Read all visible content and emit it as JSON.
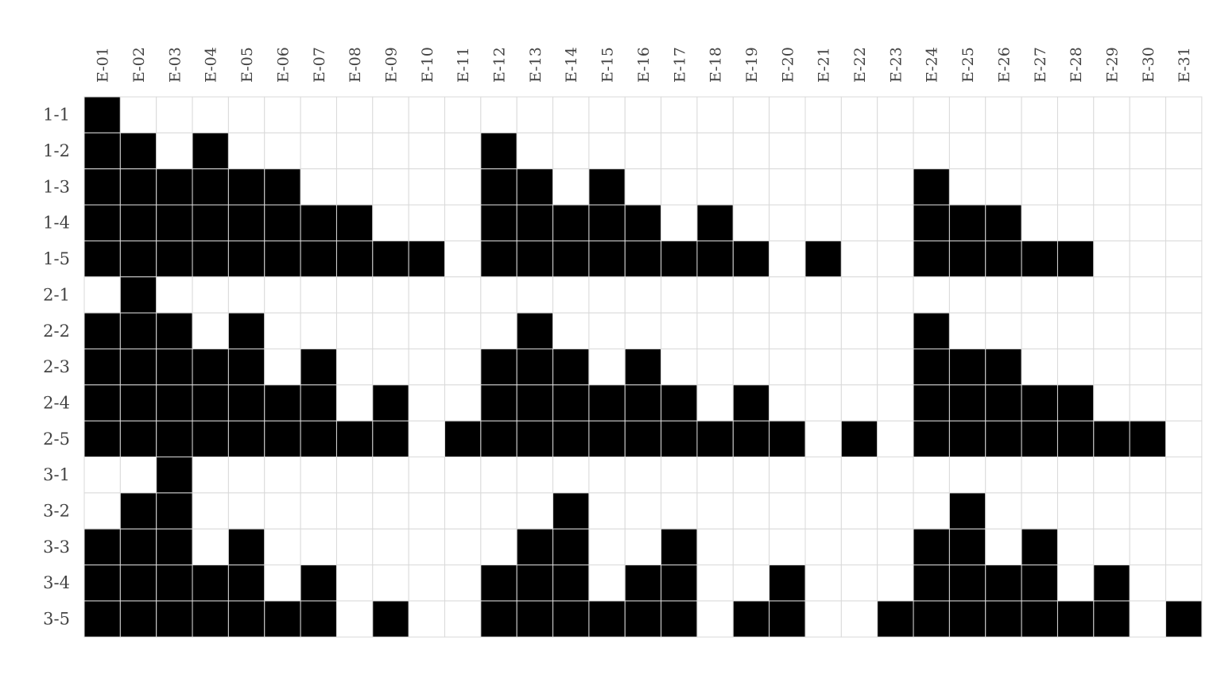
{
  "chart_data": {
    "type": "heatmap",
    "title": "",
    "xlabel": "",
    "ylabel": "",
    "legend": "none",
    "grid": true,
    "colors": {
      "filled": "#000000",
      "empty": "#ffffff",
      "grid": "#d9d9d9",
      "text": "#444444"
    },
    "columns": [
      "E-01",
      "E-02",
      "E-03",
      "E-04",
      "E-05",
      "E-06",
      "E-07",
      "E-08",
      "E-09",
      "E-10",
      "E-11",
      "E-12",
      "E-13",
      "E-14",
      "E-15",
      "E-16",
      "E-17",
      "E-18",
      "E-19",
      "E-20",
      "E-21",
      "E-22",
      "E-23",
      "E-24",
      "E-25",
      "E-26",
      "E-27",
      "E-28",
      "E-29",
      "E-30",
      "E-31"
    ],
    "rows": [
      "1-1",
      "1-2",
      "1-3",
      "1-4",
      "1-5",
      "2-1",
      "2-2",
      "2-3",
      "2-4",
      "2-5",
      "3-1",
      "3-2",
      "3-3",
      "3-4",
      "3-5"
    ],
    "values": [
      [
        1,
        0,
        0,
        0,
        0,
        0,
        0,
        0,
        0,
        0,
        0,
        0,
        0,
        0,
        0,
        0,
        0,
        0,
        0,
        0,
        0,
        0,
        0,
        0,
        0,
        0,
        0,
        0,
        0,
        0,
        0
      ],
      [
        1,
        1,
        0,
        1,
        0,
        0,
        0,
        0,
        0,
        0,
        0,
        1,
        0,
        0,
        0,
        0,
        0,
        0,
        0,
        0,
        0,
        0,
        0,
        0,
        0,
        0,
        0,
        0,
        0,
        0,
        0
      ],
      [
        1,
        1,
        1,
        1,
        1,
        1,
        0,
        0,
        0,
        0,
        0,
        1,
        1,
        0,
        1,
        0,
        0,
        0,
        0,
        0,
        0,
        0,
        0,
        1,
        0,
        0,
        0,
        0,
        0,
        0,
        0
      ],
      [
        1,
        1,
        1,
        1,
        1,
        1,
        1,
        1,
        0,
        0,
        0,
        1,
        1,
        1,
        1,
        1,
        0,
        1,
        0,
        0,
        0,
        0,
        0,
        1,
        1,
        1,
        0,
        0,
        0,
        0,
        0
      ],
      [
        1,
        1,
        1,
        1,
        1,
        1,
        1,
        1,
        1,
        1,
        0,
        1,
        1,
        1,
        1,
        1,
        1,
        1,
        1,
        0,
        1,
        0,
        0,
        1,
        1,
        1,
        1,
        1,
        0,
        0,
        0
      ],
      [
        0,
        1,
        0,
        0,
        0,
        0,
        0,
        0,
        0,
        0,
        0,
        0,
        0,
        0,
        0,
        0,
        0,
        0,
        0,
        0,
        0,
        0,
        0,
        0,
        0,
        0,
        0,
        0,
        0,
        0,
        0
      ],
      [
        1,
        1,
        1,
        0,
        1,
        0,
        0,
        0,
        0,
        0,
        0,
        0,
        1,
        0,
        0,
        0,
        0,
        0,
        0,
        0,
        0,
        0,
        0,
        1,
        0,
        0,
        0,
        0,
        0,
        0,
        0
      ],
      [
        1,
        1,
        1,
        1,
        1,
        0,
        1,
        0,
        0,
        0,
        0,
        1,
        1,
        1,
        0,
        1,
        0,
        0,
        0,
        0,
        0,
        0,
        0,
        1,
        1,
        1,
        0,
        0,
        0,
        0,
        0
      ],
      [
        1,
        1,
        1,
        1,
        1,
        1,
        1,
        0,
        1,
        0,
        0,
        1,
        1,
        1,
        1,
        1,
        1,
        0,
        1,
        0,
        0,
        0,
        0,
        1,
        1,
        1,
        1,
        1,
        0,
        0,
        0
      ],
      [
        1,
        1,
        1,
        1,
        1,
        1,
        1,
        1,
        1,
        0,
        1,
        1,
        1,
        1,
        1,
        1,
        1,
        1,
        1,
        1,
        0,
        1,
        0,
        1,
        1,
        1,
        1,
        1,
        1,
        1,
        0
      ],
      [
        0,
        0,
        1,
        0,
        0,
        0,
        0,
        0,
        0,
        0,
        0,
        0,
        0,
        0,
        0,
        0,
        0,
        0,
        0,
        0,
        0,
        0,
        0,
        0,
        0,
        0,
        0,
        0,
        0,
        0,
        0
      ],
      [
        0,
        1,
        1,
        0,
        0,
        0,
        0,
        0,
        0,
        0,
        0,
        0,
        0,
        1,
        0,
        0,
        0,
        0,
        0,
        0,
        0,
        0,
        0,
        0,
        1,
        0,
        0,
        0,
        0,
        0,
        0
      ],
      [
        1,
        1,
        1,
        0,
        1,
        0,
        0,
        0,
        0,
        0,
        0,
        0,
        1,
        1,
        0,
        0,
        1,
        0,
        0,
        0,
        0,
        0,
        0,
        1,
        1,
        0,
        1,
        0,
        0,
        0,
        0
      ],
      [
        1,
        1,
        1,
        1,
        1,
        0,
        1,
        0,
        0,
        0,
        0,
        1,
        1,
        1,
        0,
        1,
        1,
        0,
        0,
        1,
        0,
        0,
        0,
        1,
        1,
        1,
        1,
        0,
        1,
        0,
        0
      ],
      [
        1,
        1,
        1,
        1,
        1,
        1,
        1,
        0,
        1,
        0,
        0,
        1,
        1,
        1,
        1,
        1,
        1,
        0,
        1,
        1,
        0,
        0,
        1,
        1,
        1,
        1,
        1,
        1,
        1,
        0,
        1
      ]
    ]
  }
}
